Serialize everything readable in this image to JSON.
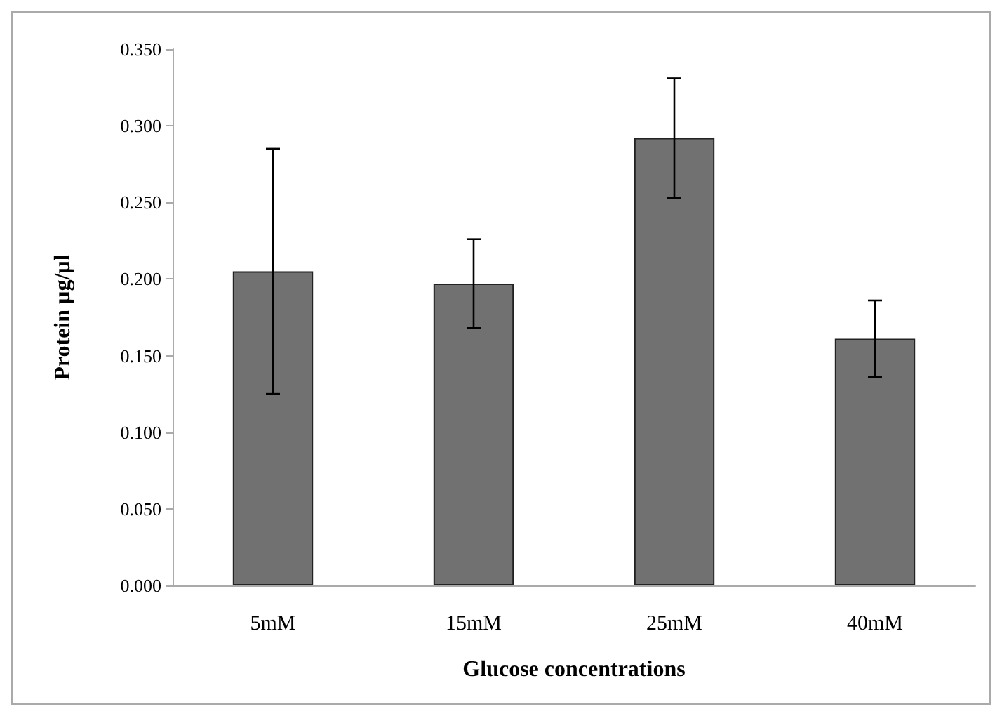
{
  "chart_data": {
    "type": "bar",
    "xlabel": "Glucose concentrations",
    "ylabel": "Protein µg/µl",
    "categories": [
      "5mM",
      "15mM",
      "25mM",
      "40mM"
    ],
    "values": [
      0.205,
      0.197,
      0.292,
      0.161
    ],
    "errors": [
      0.08,
      0.029,
      0.039,
      0.025
    ],
    "color": "#717171",
    "ylim": [
      0,
      0.35
    ],
    "yticks": [
      {
        "value": 0,
        "label": "0.000"
      },
      {
        "value": 0.05,
        "label": "0.050"
      },
      {
        "value": 0.1,
        "label": "0.100"
      },
      {
        "value": 0.15,
        "label": "0.150"
      },
      {
        "value": 0.2,
        "label": "0.200"
      },
      {
        "value": 0.25,
        "label": "0.250"
      },
      {
        "value": 0.3,
        "label": "0.300"
      },
      {
        "value": 0.35,
        "label": "0.350"
      }
    ],
    "grid": false
  }
}
